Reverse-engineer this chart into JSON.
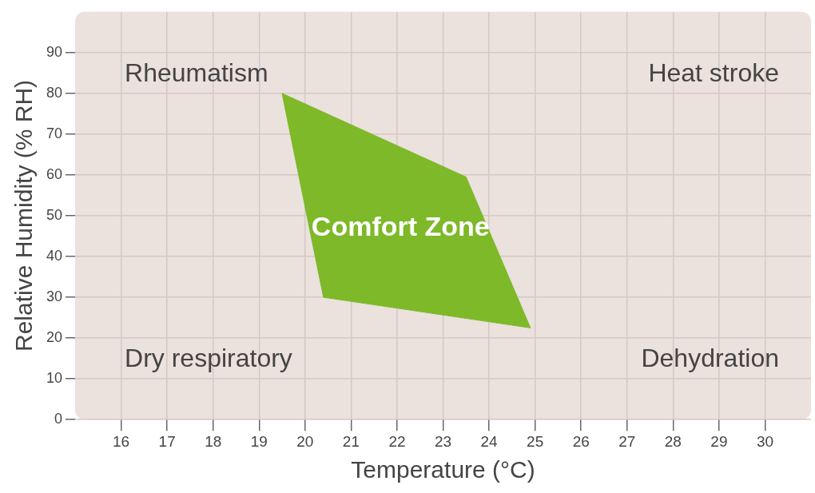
{
  "chart_data": {
    "type": "area",
    "xlabel": "Temperature (°C)",
    "ylabel": "Relative Humidity (% RH)",
    "xlim": [
      15,
      31
    ],
    "xticks": [
      16,
      17,
      18,
      19,
      20,
      21,
      22,
      23,
      24,
      25,
      26,
      27,
      28,
      29,
      30
    ],
    "ylim": [
      0,
      100
    ],
    "yticks": [
      0,
      10,
      20,
      30,
      40,
      50,
      60,
      70,
      80,
      90
    ],
    "grid": true,
    "legend": false,
    "series": [
      {
        "name": "Comfort Zone",
        "color": "#7db928",
        "x": [
          19.5,
          23.5,
          24.9,
          20.4,
          19.5
        ],
        "values": [
          80,
          59.5,
          22.5,
          30,
          80
        ]
      }
    ],
    "annotations": [
      "Rheumatism",
      "Heat stroke",
      "Dry respiratory",
      "Dehydration"
    ]
  }
}
